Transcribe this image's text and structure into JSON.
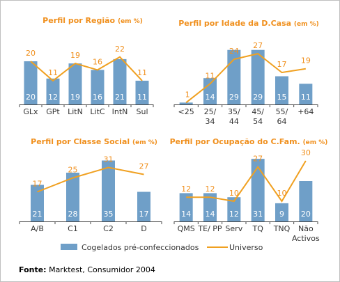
{
  "colors": {
    "bar": "#6f9fc8",
    "line": "#f0a020",
    "title": "#f0901e",
    "axis": "#444444"
  },
  "legend": {
    "bars": "Cogelados pré-confeccionados",
    "line": "Universo"
  },
  "source": {
    "label": "Fonte:",
    "text": "Marktest, Consumidor 2004"
  },
  "chart_data": [
    {
      "type": "bar",
      "title": "Perfil por Região",
      "unit": "(em %)",
      "categories": [
        "GLx",
        "GPt",
        "LitN",
        "LitC",
        "IntN",
        "Sul"
      ],
      "series": [
        {
          "name": "Cogelados pré-confeccionados",
          "type": "bar",
          "values": [
            20,
            12,
            19,
            16,
            21,
            11
          ]
        },
        {
          "name": "Universo",
          "type": "line",
          "values": [
            20,
            11,
            19,
            16,
            22,
            11
          ]
        }
      ],
      "ylim": [
        0,
        30
      ]
    },
    {
      "type": "bar",
      "title": "Perfil por Idade da D.Casa",
      "unit": "(em %)",
      "categories": [
        "<25",
        "25/\n34",
        "35/\n44",
        "45/\n54",
        "55/\n64",
        "+64"
      ],
      "series": [
        {
          "name": "Cogelados pré-confeccionados",
          "type": "bar",
          "values": [
            1,
            14,
            29,
            29,
            15,
            11
          ]
        },
        {
          "name": "Universo",
          "type": "line",
          "values": [
            1,
            11,
            24,
            27,
            17,
            19
          ]
        }
      ],
      "ylim": [
        0,
        30
      ]
    },
    {
      "type": "bar",
      "title": "Perfil por Classe Social",
      "unit": "(em %)",
      "categories": [
        "A/B",
        "C1",
        "C2",
        "D"
      ],
      "series": [
        {
          "name": "Cogelados pré-confeccionados",
          "type": "bar",
          "values": [
            21,
            28,
            35,
            17
          ]
        },
        {
          "name": "Universo",
          "type": "line",
          "values": [
            17,
            25,
            31,
            27
          ]
        }
      ],
      "ylim": [
        0,
        40
      ]
    },
    {
      "type": "bar",
      "title": "Perfil por Ocupação do C.Fam.",
      "unit": "(em %)",
      "categories": [
        "QMS",
        "TE/ PP",
        "Serv",
        "TQ",
        "TNQ",
        "Não\nActivos"
      ],
      "series": [
        {
          "name": "Cogelados pré-confeccionados",
          "type": "bar",
          "values": [
            14,
            14,
            12,
            31,
            9,
            20
          ]
        },
        {
          "name": "Universo",
          "type": "line",
          "values": [
            12,
            12,
            10,
            27,
            10,
            30
          ]
        }
      ],
      "ylim": [
        0,
        40
      ]
    }
  ]
}
